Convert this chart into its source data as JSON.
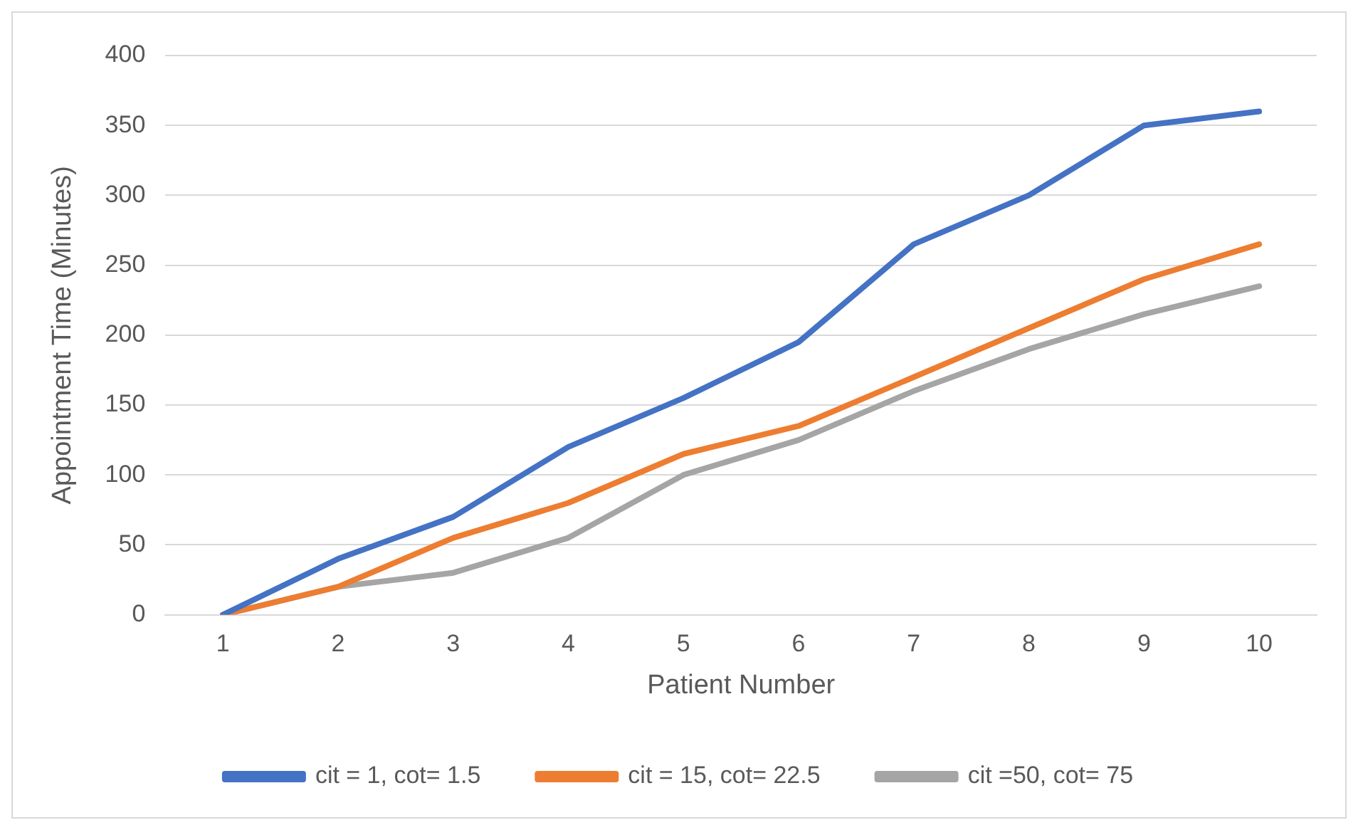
{
  "chart_data": {
    "type": "line",
    "xlabel": "Patient Number",
    "ylabel": "Appointment Time (Minutes)",
    "categories": [
      "1",
      "2",
      "3",
      "4",
      "5",
      "6",
      "7",
      "8",
      "9",
      "10"
    ],
    "series": [
      {
        "name": "cit = 1, cot= 1.5",
        "color": "#4472c4",
        "values": [
          0,
          40,
          70,
          120,
          155,
          195,
          265,
          300,
          350,
          360
        ]
      },
      {
        "name": "cit = 15, cot= 22.5",
        "color": "#ed7d31",
        "values": [
          0,
          20,
          55,
          80,
          115,
          135,
          170,
          205,
          240,
          265
        ]
      },
      {
        "name": "cit =50, cot= 75",
        "color": "#a5a5a5",
        "values": [
          0,
          20,
          30,
          55,
          100,
          125,
          160,
          190,
          215,
          235
        ]
      }
    ],
    "ylim": [
      0,
      400
    ],
    "yticks": [
      0,
      50,
      100,
      150,
      200,
      250,
      300,
      350,
      400
    ],
    "grid": "y",
    "legend": "bottom",
    "marker": "none",
    "line_style": "solid"
  }
}
